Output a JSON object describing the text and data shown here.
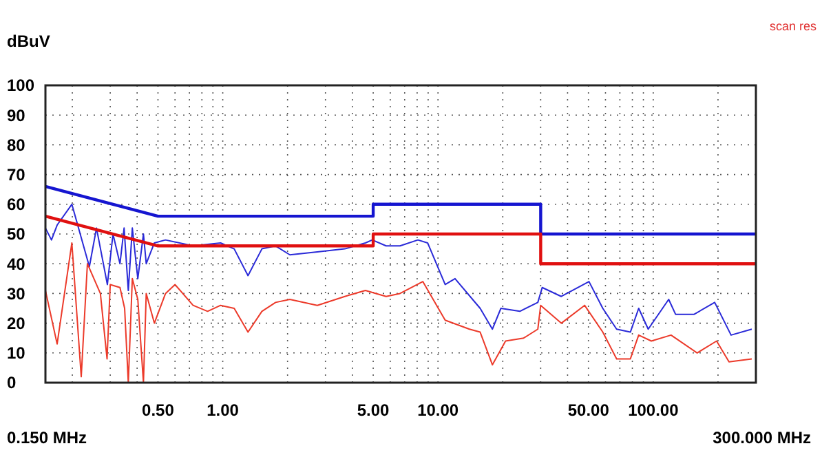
{
  "chart_data": {
    "type": "line",
    "ylabel": "dBuV",
    "log": "x",
    "grid": true,
    "line_style": "solid",
    "xlim": [
      0.15,
      300
    ],
    "ylim": [
      0,
      100
    ],
    "xticks": [
      {
        "value": 0.15,
        "label": null
      },
      {
        "value": 0.2,
        "label": null
      },
      {
        "value": 0.3,
        "label": null
      },
      {
        "value": 0.4,
        "label": null
      },
      {
        "value": 0.5,
        "label": "0.50"
      },
      {
        "value": 0.6,
        "label": null
      },
      {
        "value": 0.7,
        "label": null
      },
      {
        "value": 0.8,
        "label": null
      },
      {
        "value": 0.9,
        "label": null
      },
      {
        "value": 1,
        "label": "1.00"
      },
      {
        "value": 2,
        "label": null
      },
      {
        "value": 3,
        "label": null
      },
      {
        "value": 4,
        "label": null
      },
      {
        "value": 5,
        "label": "5.00"
      },
      {
        "value": 6,
        "label": null
      },
      {
        "value": 7,
        "label": null
      },
      {
        "value": 8,
        "label": null
      },
      {
        "value": 9,
        "label": null
      },
      {
        "value": 10,
        "label": "10.00"
      },
      {
        "value": 20,
        "label": null
      },
      {
        "value": 30,
        "label": null
      },
      {
        "value": 40,
        "label": null
      },
      {
        "value": 50,
        "label": "50.00"
      },
      {
        "value": 60,
        "label": null
      },
      {
        "value": 70,
        "label": null
      },
      {
        "value": 80,
        "label": null
      },
      {
        "value": 90,
        "label": null
      },
      {
        "value": 100,
        "label": "100.00"
      },
      {
        "value": 200,
        "label": null
      },
      {
        "value": 300,
        "label": null
      }
    ],
    "yticks": [
      0,
      10,
      20,
      30,
      40,
      50,
      60,
      70,
      80,
      90,
      100
    ],
    "annotations": [
      "scan res",
      "0.150 MHz",
      "300.000 MHz"
    ],
    "series": [
      {
        "color": "#2a2ad8",
        "x": [
          0.15,
          0.16,
          0.17,
          0.199,
          0.24,
          0.259,
          0.291,
          0.309,
          0.333,
          0.348,
          0.364,
          0.38,
          0.403,
          0.428,
          0.441,
          0.481,
          0.542,
          0.728,
          0.977,
          1.13,
          1.31,
          1.52,
          1.76,
          2.05,
          2.75,
          3.69,
          4.6,
          4.95,
          5.74,
          6.66,
          8.07,
          8.95,
          10.8,
          12,
          15.7,
          17.9,
          19.6,
          24,
          29.1,
          30.5,
          37.4,
          50.3,
          58.3,
          67.6,
          78.3,
          85.6,
          94.8,
          118,
          127,
          155,
          193,
          230,
          287
        ],
        "values": [
          52,
          48,
          53,
          60,
          39,
          52,
          33,
          50,
          40,
          52,
          31,
          52,
          35,
          50,
          40,
          47,
          48,
          46,
          47,
          45,
          36,
          45,
          46,
          43,
          44,
          45,
          47,
          48,
          46,
          46,
          48,
          47,
          33,
          35,
          25,
          18,
          25,
          24,
          27,
          32,
          29,
          34,
          25,
          18,
          17,
          25,
          18,
          28,
          23,
          23,
          27,
          16,
          18
        ]
      },
      {
        "color": "#ec3a2a",
        "x": [
          0.15,
          0.17,
          0.199,
          0.22,
          0.235,
          0.27,
          0.29,
          0.3,
          0.333,
          0.35,
          0.364,
          0.38,
          0.403,
          0.428,
          0.441,
          0.481,
          0.542,
          0.6,
          0.728,
          0.85,
          0.977,
          1.13,
          1.31,
          1.52,
          1.76,
          2.05,
          2.75,
          3.69,
          4.6,
          5.74,
          6.66,
          8.5,
          10.8,
          14,
          15.7,
          17.9,
          20.6,
          25,
          29.1,
          30,
          37.4,
          48,
          58.3,
          67.6,
          78.3,
          85.6,
          98,
          121,
          160,
          197,
          225,
          287
        ],
        "values": [
          31,
          13,
          47,
          2,
          40,
          30,
          8,
          33,
          32,
          25,
          0,
          35,
          28,
          0,
          30,
          20,
          30,
          33,
          26,
          24,
          26,
          25,
          17,
          24,
          27,
          28,
          26,
          29,
          31,
          29,
          30,
          34,
          21,
          18,
          17,
          6,
          14,
          15,
          18,
          26,
          20,
          26,
          17,
          8,
          8,
          16,
          14,
          16,
          10,
          14,
          7,
          8
        ]
      },
      {
        "color": "#1515d0",
        "x": [
          0.15,
          0.5,
          5,
          5,
          30,
          30,
          300
        ],
        "values": [
          66,
          56,
          56,
          60,
          60,
          50,
          50
        ]
      },
      {
        "color": "#e01010",
        "x": [
          0.15,
          0.5,
          5,
          5,
          30,
          30,
          300
        ],
        "values": [
          56,
          46,
          46,
          50,
          50,
          40,
          40
        ]
      }
    ]
  }
}
